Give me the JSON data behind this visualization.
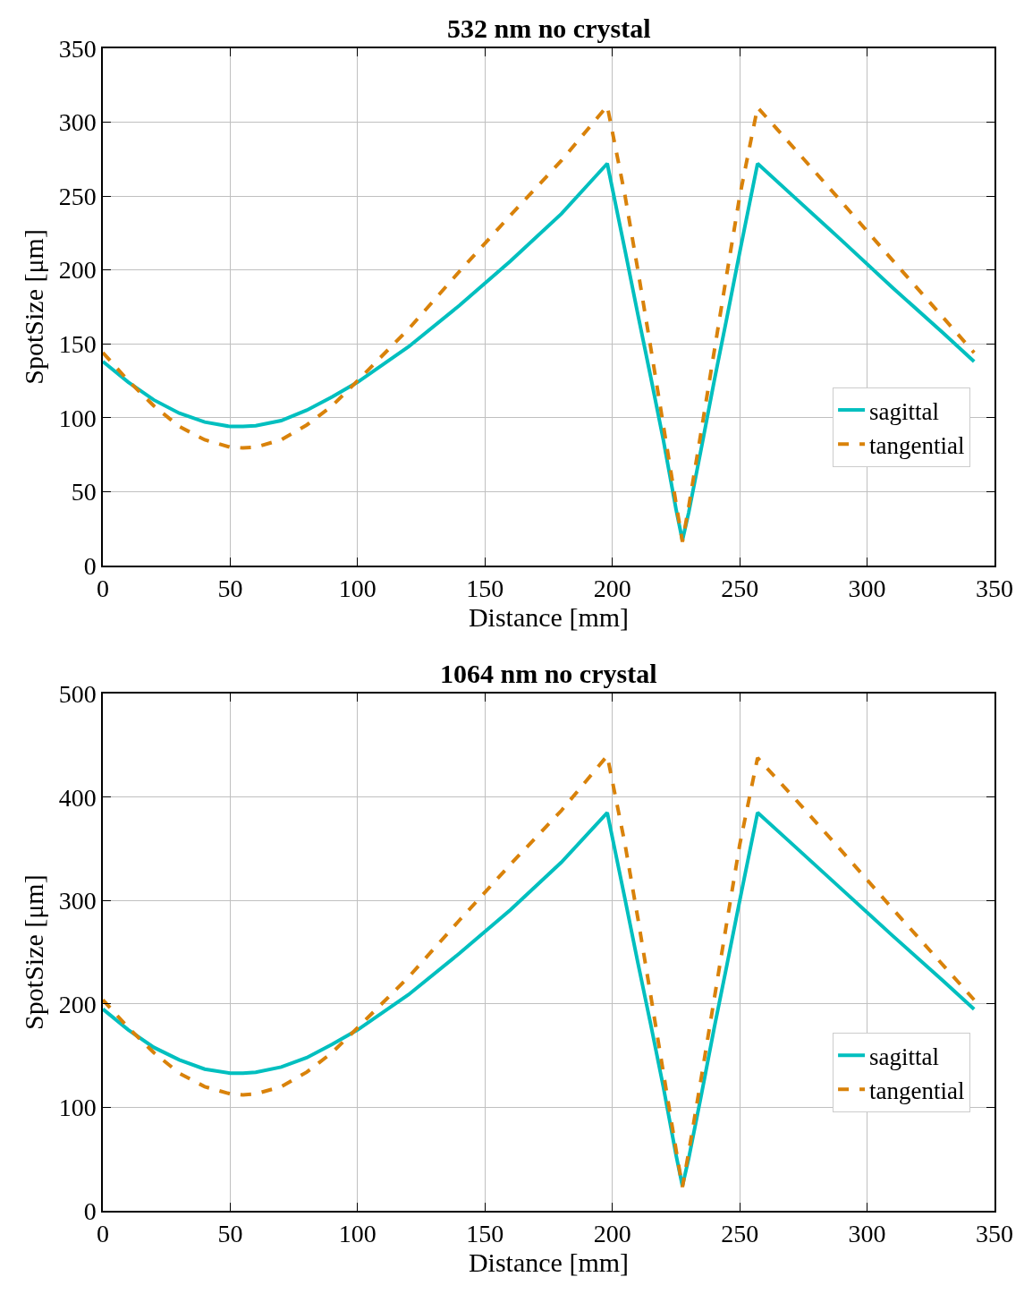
{
  "chart_data": [
    {
      "type": "line",
      "title": "532 nm no crystal",
      "xlabel": "Distance [mm]",
      "ylabel": "SpotSize [μm]",
      "xlim": [
        0,
        350
      ],
      "ylim": [
        0,
        350
      ],
      "xticks": [
        0,
        50,
        100,
        150,
        200,
        250,
        300,
        350
      ],
      "yticks": [
        0,
        50,
        100,
        150,
        200,
        250,
        300,
        350
      ],
      "grid": true,
      "legend": "bottom right",
      "x": [
        0,
        10,
        20,
        30,
        40,
        50,
        55,
        60,
        70,
        80,
        90,
        100,
        120,
        140,
        160,
        180,
        198,
        205,
        210,
        215,
        220,
        225,
        227.5,
        230,
        235,
        240,
        245,
        250,
        257,
        270,
        290,
        310,
        330,
        342
      ],
      "series": [
        {
          "name": "sagittal",
          "color": "#00bfbf",
          "line_style": "solid",
          "values": [
            138,
            124,
            112,
            103,
            97,
            94,
            94,
            94.5,
            98,
            105,
            114,
            124,
            148,
            176,
            206,
            238,
            272,
            213,
            170,
            128,
            85,
            38,
            17,
            36,
            80,
            125,
            168,
            212,
            272,
            251.5,
            220,
            188,
            157,
            138
          ]
        },
        {
          "name": "tangential",
          "color": "#d9820a",
          "line_style": "dashed",
          "values": [
            144,
            125,
            108,
            94,
            85,
            80,
            79.5,
            80,
            85,
            95,
            108,
            125,
            160,
            199,
            237,
            274,
            311,
            250,
            200,
            148,
            95,
            42,
            16,
            40,
            92,
            145,
            198,
            250,
            310,
            285,
            246,
            206.5,
            167.5,
            144
          ]
        }
      ]
    },
    {
      "type": "line",
      "title": "1064 nm no crystal",
      "xlabel": "Distance [mm]",
      "ylabel": "SpotSize [μm]",
      "xlim": [
        0,
        350
      ],
      "ylim": [
        0,
        500
      ],
      "xticks": [
        0,
        50,
        100,
        150,
        200,
        250,
        300,
        350
      ],
      "yticks": [
        0,
        100,
        200,
        300,
        400,
        500
      ],
      "grid": true,
      "legend": "bottom right",
      "x": [
        0,
        10,
        20,
        30,
        40,
        50,
        55,
        60,
        70,
        80,
        90,
        100,
        120,
        140,
        160,
        180,
        198,
        205,
        210,
        215,
        220,
        225,
        227.5,
        230,
        235,
        240,
        245,
        250,
        257,
        270,
        290,
        310,
        330,
        342
      ],
      "series": [
        {
          "name": "sagittal",
          "color": "#00bfbf",
          "line_style": "solid",
          "values": [
            195,
            175,
            158,
            146,
            137,
            133,
            133,
            134,
            139,
            148,
            161,
            175,
            209,
            249,
            291,
            337,
            385,
            301,
            240,
            181,
            120,
            54,
            24,
            51,
            113,
            177,
            238,
            300,
            385,
            356,
            311,
            266,
            222,
            195
          ]
        },
        {
          "name": "tangential",
          "color": "#d9820a",
          "line_style": "dashed",
          "values": [
            204,
            177,
            153,
            133,
            120,
            113,
            112,
            113,
            120,
            134,
            153,
            177,
            226,
            281,
            335,
            387,
            440,
            354,
            283,
            209,
            134,
            59,
            23,
            57,
            130,
            205,
            280,
            354,
            438,
            403,
            348,
            292,
            237,
            204
          ]
        }
      ]
    }
  ]
}
